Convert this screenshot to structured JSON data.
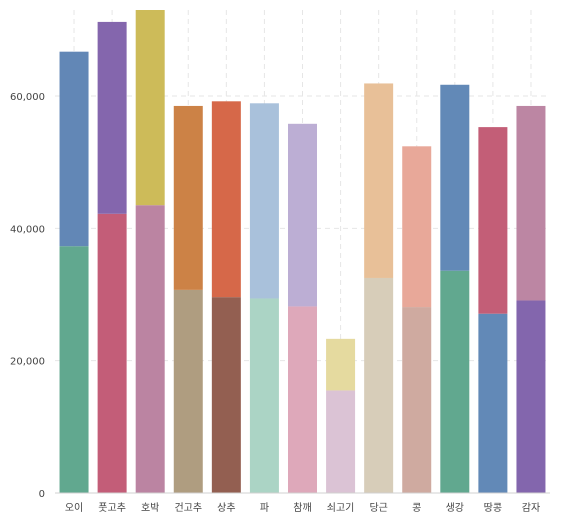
{
  "chart_data": {
    "type": "bar",
    "stacked": true,
    "categories": [
      "오이",
      "풋고추",
      "호박",
      "건고추",
      "상추",
      "파",
      "참깨",
      "쇠고기",
      "당근",
      "콩",
      "생강",
      "땅콩",
      "감자"
    ],
    "series": [
      {
        "values": [
          37300,
          42200,
          43500,
          30700,
          29600,
          29400,
          28200,
          15500,
          32500,
          28100,
          33600,
          27100,
          29100
        ],
        "colors": [
          "#61a88f",
          "#c35d78",
          "#bb84a2",
          "#af9d80",
          "#935f51",
          "#abd4c5",
          "#dea8ba",
          "#dbc3d5",
          "#d7cdb9",
          "#cfaaa0",
          "#61a88f",
          "#6289b7",
          "#8366ad"
        ]
      },
      {
        "values": [
          29400,
          29000,
          29500,
          27800,
          29600,
          29500,
          27600,
          7800,
          29400,
          24300,
          28100,
          28200,
          29400
        ],
        "colors": [
          "#6287b6",
          "#8466ad",
          "#cdbb59",
          "#cc8246",
          "#d66849",
          "#a9c1db",
          "#bcaed4",
          "#e5da9f",
          "#e8c098",
          "#e8a899",
          "#6289b7",
          "#c35e77",
          "#bc86a3"
        ]
      }
    ],
    "ylim": [
      0,
      73000
    ],
    "yticks": [
      0,
      20000,
      40000,
      60000
    ],
    "ytick_labels": [
      "0",
      "20,000",
      "40,000",
      "60,000"
    ],
    "grid": true,
    "title": "",
    "xlabel": "",
    "ylabel": ""
  }
}
